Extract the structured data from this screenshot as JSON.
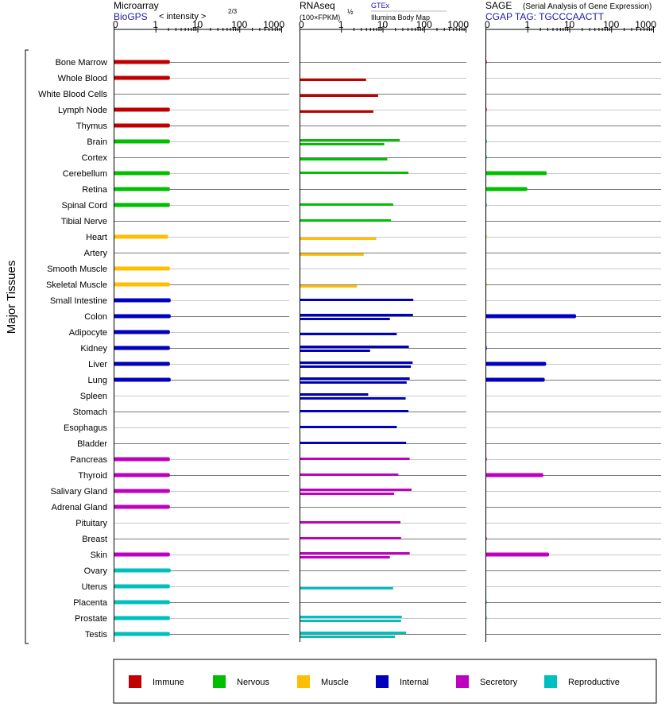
{
  "panels": {
    "microarray": {
      "title": "Microarray",
      "source": "BioGPS",
      "unit": "< intensity >",
      "unit_exp": "2/3"
    },
    "rnaseq": {
      "title": "RNAseq",
      "unit": "(100×FPKM)",
      "unit_exp": "½",
      "source_gtex": "GTEx",
      "source_ibm": "Illumina Body Map"
    },
    "sage": {
      "title": "SAGE",
      "subtitle": "(Serial Analysis of Gene Expression)",
      "tag": "CGAP TAG: TGCCCAACTT"
    }
  },
  "y_axis_label": "Major Tissues",
  "legend": [
    {
      "label": "Immune",
      "color": "#c00000"
    },
    {
      "label": "Nervous",
      "color": "#00bf00"
    },
    {
      "label": "Muscle",
      "color": "#ffbf00"
    },
    {
      "label": "Internal",
      "color": "#0000bf"
    },
    {
      "label": "Secretory",
      "color": "#bf00bf"
    },
    {
      "label": "Reproductive",
      "color": "#00bfbf"
    }
  ],
  "chart_data": [
    {
      "type": "bar",
      "title": "Microarray",
      "scale": "log",
      "xlim": [
        0,
        1000
      ],
      "tick_labels": [
        "0",
        "1",
        "10",
        "100",
        "1000"
      ],
      "categories": [
        "Bone Marrow",
        "Whole Blood",
        "White Blood Cells",
        "Lymph Node",
        "Thymus",
        "Brain",
        "Cortex",
        "Cerebellum",
        "Retina",
        "Spinal Cord",
        "Tibial Nerve",
        "Heart",
        "Artery",
        "Smooth Muscle",
        "Skeletal Muscle",
        "Small Intestine",
        "Colon",
        "Adipocyte",
        "Kidney",
        "Liver",
        "Lung",
        "Spleen",
        "Stomach",
        "Esophagus",
        "Bladder",
        "Pancreas",
        "Thyroid",
        "Salivary Gland",
        "Adrenal Gland",
        "Pituitary",
        "Breast",
        "Skin",
        "Ovary",
        "Uterus",
        "Placenta",
        "Prostate",
        "Testis"
      ],
      "groups": [
        "Immune",
        "Immune",
        "Immune",
        "Immune",
        "Immune",
        "Nervous",
        "Nervous",
        "Nervous",
        "Nervous",
        "Nervous",
        "Nervous",
        "Muscle",
        "Muscle",
        "Muscle",
        "Muscle",
        "Internal",
        "Internal",
        "Internal",
        "Internal",
        "Internal",
        "Internal",
        "Internal",
        "Internal",
        "Internal",
        "Internal",
        "Secretory",
        "Secretory",
        "Secretory",
        "Secretory",
        "Secretory",
        "Secretory",
        "Secretory",
        "Reproductive",
        "Reproductive",
        "Reproductive",
        "Reproductive",
        "Reproductive"
      ],
      "values": [
        2.2,
        2.2,
        null,
        2.2,
        2.2,
        2.2,
        null,
        2.2,
        2.2,
        2.2,
        null,
        2.0,
        null,
        2.2,
        2.2,
        2.3,
        2.3,
        2.2,
        2.2,
        2.2,
        2.3,
        null,
        null,
        null,
        null,
        2.2,
        2.2,
        2.2,
        2.2,
        null,
        null,
        2.2,
        2.3,
        2.2,
        2.2,
        2.2,
        2.2
      ]
    },
    {
      "type": "bar",
      "title": "RNAseq",
      "scale": "log",
      "xlim": [
        0,
        1000
      ],
      "tick_labels": [
        "0",
        "1",
        "10",
        "100",
        "1000"
      ],
      "series": [
        {
          "name": "GTEx",
          "values": [
            null,
            null,
            null,
            null,
            null,
            26,
            null,
            42,
            null,
            18,
            16,
            null,
            null,
            null,
            null,
            55,
            54,
            null,
            43,
            53,
            45,
            4.5,
            42,
            22,
            37,
            45,
            24,
            50,
            null,
            27,
            28,
            45,
            null,
            null,
            null,
            29,
            37
          ]
        },
        {
          "name": "Illumina Body Map",
          "values": [
            null,
            4.0,
            7.8,
            6.0,
            null,
            11,
            13,
            null,
            null,
            null,
            null,
            7.0,
            3.5,
            null,
            2.4,
            null,
            15,
            22,
            5.0,
            48,
            38,
            36,
            null,
            null,
            null,
            null,
            null,
            19,
            null,
            null,
            null,
            15,
            null,
            18,
            null,
            28,
            20
          ]
        }
      ]
    },
    {
      "type": "bar",
      "title": "SAGE",
      "scale": "log",
      "xlim": [
        0,
        1000
      ],
      "tick_labels": [
        "0",
        "1",
        "10",
        "100",
        "1000"
      ],
      "values": [
        0.03,
        null,
        null,
        0.03,
        null,
        0.03,
        0.03,
        2.9,
        1.0,
        0.03,
        null,
        0.02,
        null,
        null,
        0.02,
        null,
        14.5,
        null,
        0.03,
        2.8,
        2.6,
        null,
        null,
        null,
        null,
        0.03,
        2.4,
        null,
        null,
        null,
        0.03,
        3.3,
        null,
        null,
        0.03,
        0.03,
        null
      ]
    }
  ]
}
